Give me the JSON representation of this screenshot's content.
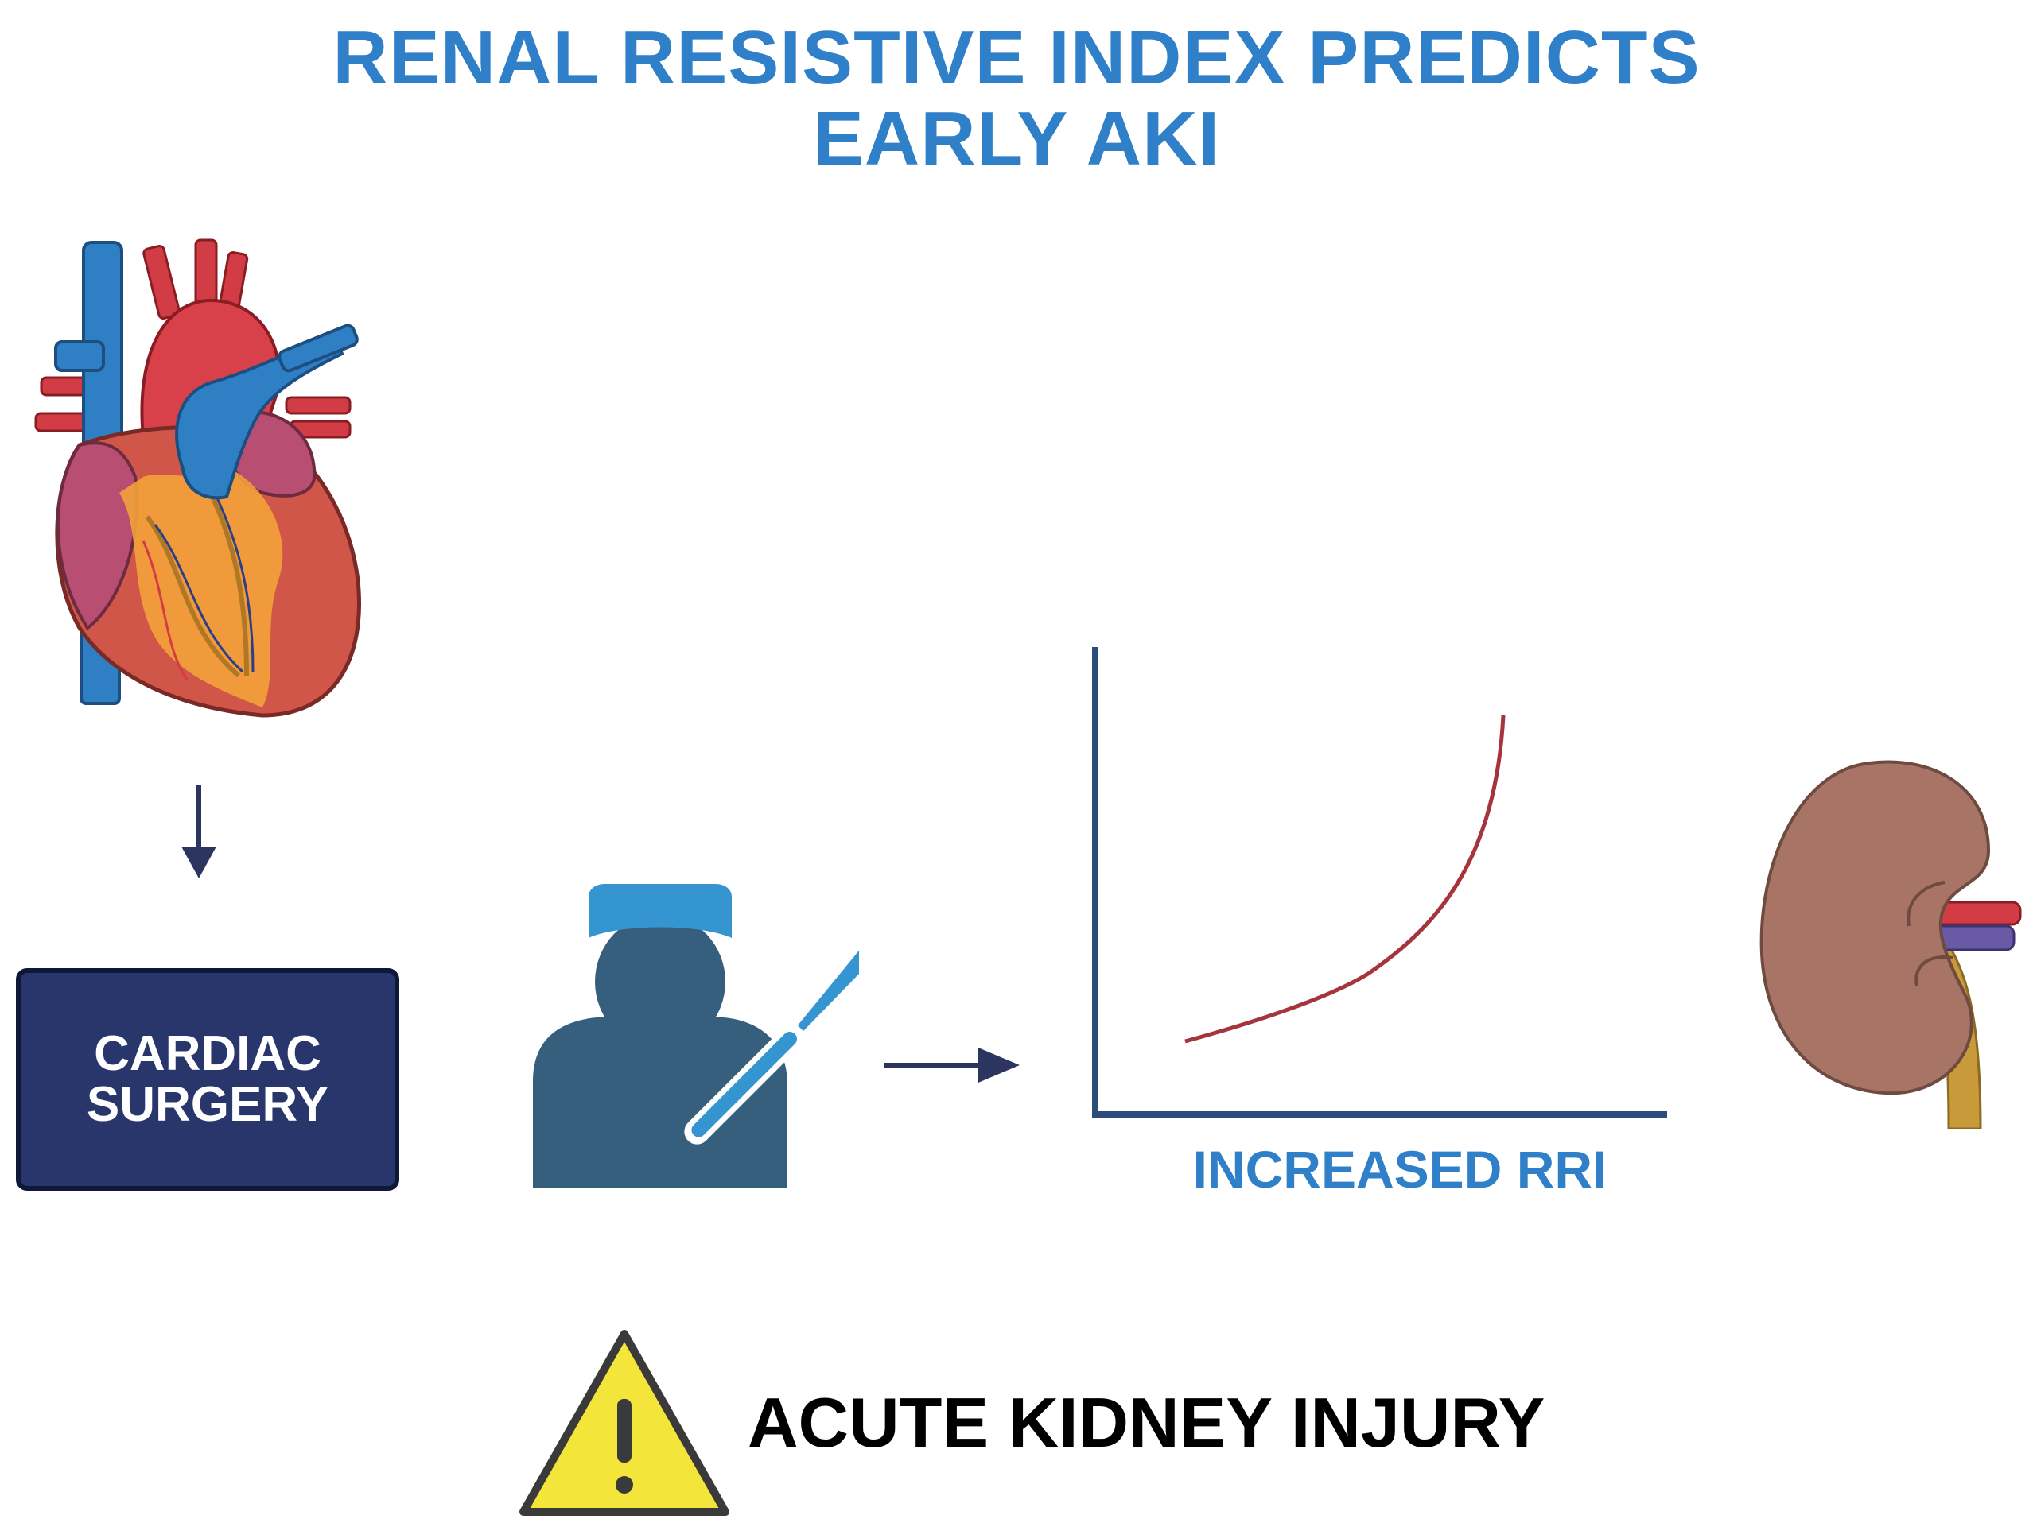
{
  "title": {
    "line1": "RENAL RESISTIVE INDEX PREDICTS",
    "line2": "EARLY AKI"
  },
  "surgery_box": {
    "line1": "CARDIAC",
    "line2": "SURGERY"
  },
  "graph": {
    "xlabel": "INCREASED RRI"
  },
  "outcome": {
    "label": "ACUTE KIDNEY INJURY"
  },
  "icons": {
    "heart": "heart-icon",
    "surgeon": "surgeon-icon",
    "scalpel": "scalpel-icon",
    "kidney": "kidney-icon",
    "warning": "warning-icon"
  },
  "colors": {
    "title_blue": "#2f80c8",
    "navy": "#29366c",
    "arrow": "#2b3560",
    "axis": "#2b4d7a",
    "curve": "#a6343c",
    "surgeon": "#365f7d",
    "cap": "#3595d0",
    "warning_fill": "#f4e53b",
    "kidney": "#a87466"
  }
}
